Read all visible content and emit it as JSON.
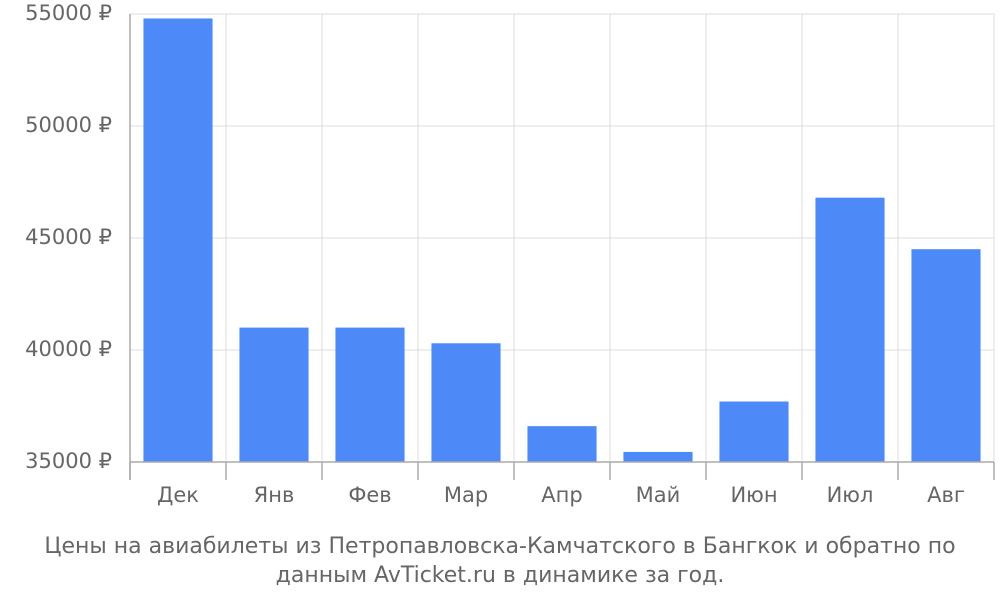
{
  "chart_data": {
    "type": "bar",
    "title": "Цены на авиабилеты из Петропавловска-Камчатского в Бангкок и обратно по данным AvTicket.ru в динамике за год.",
    "categories": [
      "Дек",
      "Янв",
      "Фев",
      "Мар",
      "Апр",
      "Май",
      "Июн",
      "Июл",
      "Авг"
    ],
    "values": [
      54800,
      41000,
      41000,
      40300,
      36600,
      35450,
      37700,
      46800,
      44500
    ],
    "color": "#4d8af8",
    "ylim": [
      35000,
      55000
    ],
    "yticks": [
      {
        "value": 35000,
        "label": "35000 ₽"
      },
      {
        "value": 40000,
        "label": "40000 ₽"
      },
      {
        "value": 45000,
        "label": "45000 ₽"
      },
      {
        "value": 50000,
        "label": "50000 ₽"
      },
      {
        "value": 55000,
        "label": "55000 ₽"
      }
    ],
    "grid": true
  }
}
